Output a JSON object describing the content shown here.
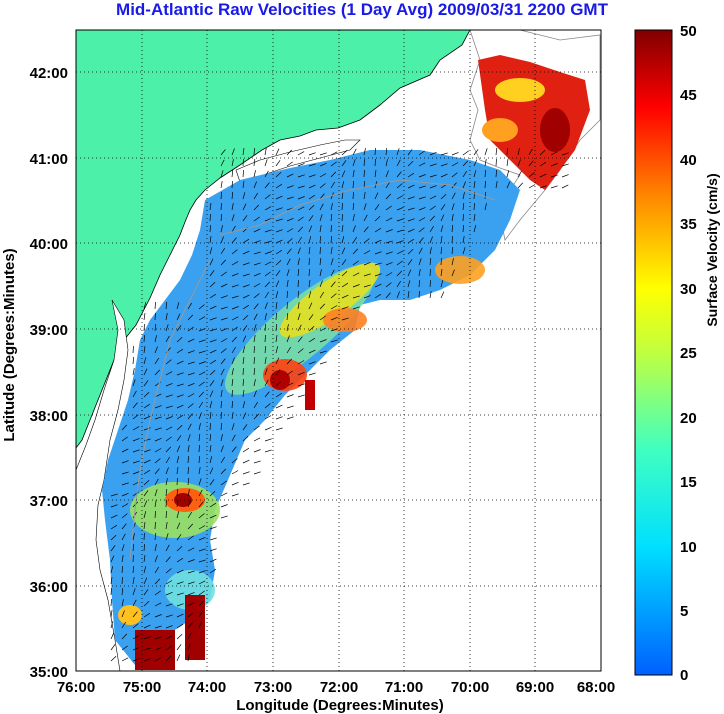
{
  "title": "Mid-Atlantic Raw Velocities (1 Day Avg) 2009/03/31 2200 GMT",
  "x_axis": {
    "label": "Longitude (Degrees:Minutes)",
    "ticks": [
      "76:00",
      "75:00",
      "74:00",
      "73:00",
      "72:00",
      "71:00",
      "70:00",
      "69:00",
      "68:00"
    ]
  },
  "y_axis": {
    "label": "Latitude (Degrees:Minutes)",
    "ticks": [
      "42:00",
      "41:00",
      "40:00",
      "39:00",
      "38:00",
      "37:00",
      "36:00",
      "35:00"
    ]
  },
  "colorbar": {
    "label": "Surface Velocity (cm/s)",
    "ticks": [
      "50",
      "45",
      "40",
      "35",
      "30",
      "25",
      "20",
      "15",
      "10",
      "5",
      "0"
    ],
    "min": 0,
    "max": 50
  },
  "colors": {
    "land": "#4df0a8",
    "coast": "#000000",
    "grid": "#000000",
    "title": "#1a1ae6"
  },
  "map_extent": {
    "lon": [
      -76,
      -68
    ],
    "lat": [
      35,
      42.5
    ]
  }
}
